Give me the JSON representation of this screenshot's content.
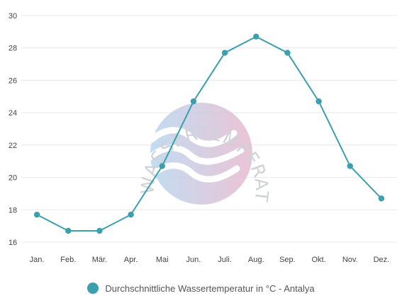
{
  "chart_data": {
    "type": "line",
    "categories": [
      "Jan.",
      "Feb.",
      "Mär.",
      "Apr.",
      "Mai",
      "Jun.",
      "Juli.",
      "Aug.",
      "Sep.",
      "Okt.",
      "Nov.",
      "Dez."
    ],
    "series": [
      {
        "name": "Durchschnittliche Wassertemperatur in °C - Antalya",
        "values": [
          17.7,
          16.7,
          16.7,
          17.7,
          20.7,
          24.7,
          27.7,
          28.7,
          27.7,
          24.7,
          20.7,
          18.7
        ],
        "color": "#3aa0ae"
      }
    ],
    "ylim": [
      16,
      30
    ],
    "yticks": [
      16,
      18,
      20,
      22,
      24,
      26,
      28,
      30
    ],
    "grid": true,
    "legend_position": "bottom"
  },
  "watermark": {
    "text": "WASSERTEMPERATUR.ORG"
  },
  "colors": {
    "line": "#3aa0ae",
    "grid": "#e8e8e8",
    "wm_left": "#b7d6ee",
    "wm_right": "#e8b9cf"
  }
}
